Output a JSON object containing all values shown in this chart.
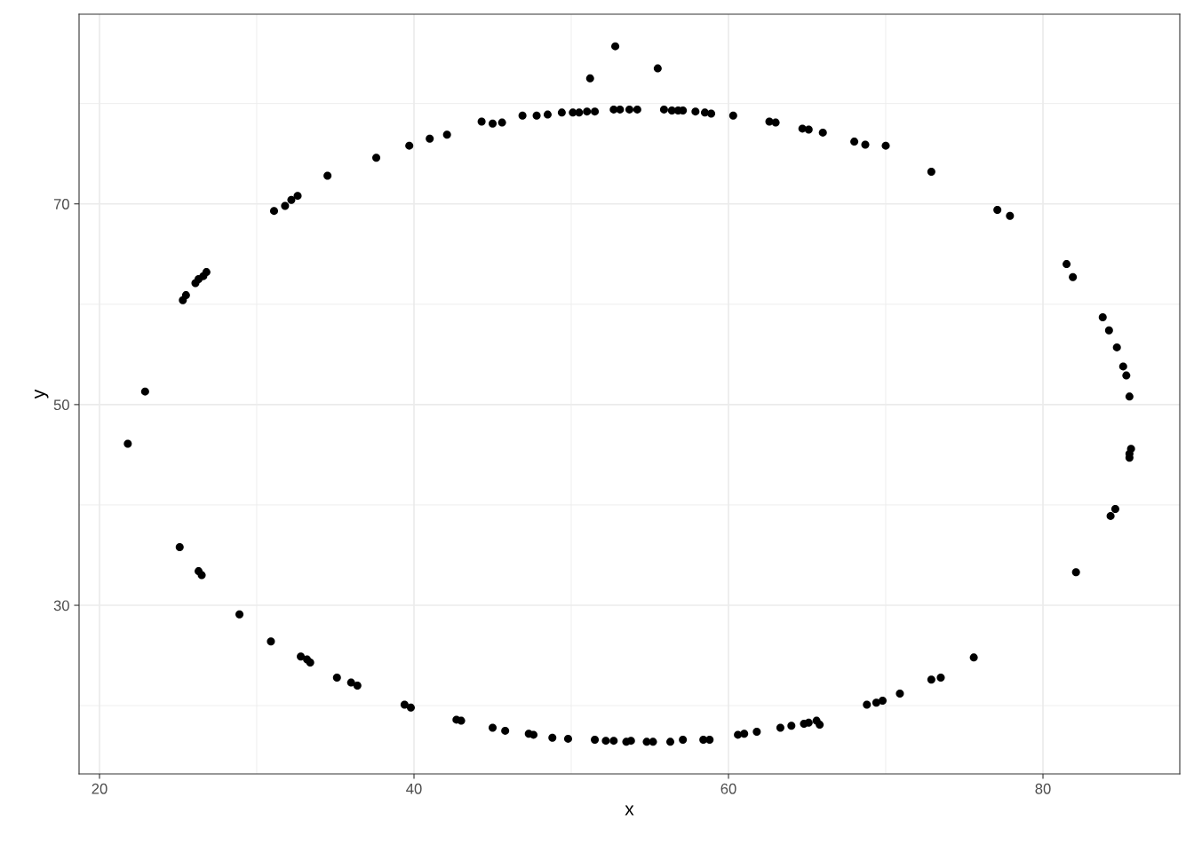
{
  "chart_data": {
    "type": "scatter",
    "xlabel": "x",
    "ylabel": "y",
    "xlim": [
      18.7,
      88.7
    ],
    "ylim": [
      13.2,
      88.9
    ],
    "xticks": [
      20,
      40,
      60,
      80
    ],
    "yticks": [
      30,
      50,
      70
    ],
    "grid": true,
    "marker": "circle",
    "series": [
      {
        "color": "#000000",
        "x": [
          52.8,
          55.5,
          51.2,
          31.1,
          31.8,
          32.2,
          32.6,
          34.5,
          37.6,
          39.7,
          41.0,
          42.1,
          44.3,
          45.0,
          45.6,
          46.9,
          47.8,
          48.5,
          49.4,
          50.1,
          50.5,
          51.0,
          51.5,
          52.7,
          53.1,
          53.7,
          54.2,
          55.9,
          56.4,
          56.8,
          57.1,
          57.9,
          58.5,
          58.9,
          60.3,
          62.6,
          63.0,
          64.7,
          65.1,
          66.0,
          68.0,
          68.7,
          70.0,
          72.9,
          77.1,
          77.9,
          81.5,
          81.9,
          83.8,
          84.2,
          84.7,
          85.1,
          85.3,
          85.5,
          85.6,
          85.5,
          85.5,
          84.6,
          84.3,
          82.1,
          26.8,
          26.6,
          26.3,
          26.1,
          25.5,
          25.3,
          22.9,
          21.8,
          25.1,
          26.3,
          26.5,
          28.9,
          30.9,
          32.8,
          33.2,
          33.4,
          35.1,
          36.0,
          36.4,
          39.4,
          39.8,
          42.7,
          43.0,
          45.0,
          45.8,
          47.3,
          47.6,
          48.8,
          49.8,
          51.5,
          52.2,
          52.7,
          53.5,
          53.8,
          54.8,
          55.2,
          56.3,
          57.1,
          58.4,
          58.8,
          60.6,
          61.0,
          61.8,
          63.3,
          64.0,
          64.8,
          65.1,
          65.6,
          65.8,
          68.8,
          69.4,
          69.8,
          70.9,
          72.9,
          73.5,
          75.6
        ],
        "values": [
          85.7,
          83.5,
          82.5,
          69.3,
          69.8,
          70.4,
          70.8,
          72.8,
          74.6,
          75.8,
          76.5,
          76.9,
          78.2,
          78.0,
          78.1,
          78.8,
          78.8,
          78.9,
          79.1,
          79.1,
          79.1,
          79.2,
          79.2,
          79.4,
          79.4,
          79.4,
          79.4,
          79.4,
          79.3,
          79.3,
          79.3,
          79.2,
          79.1,
          79.0,
          78.8,
          78.2,
          78.1,
          77.5,
          77.4,
          77.1,
          76.2,
          75.9,
          75.8,
          73.2,
          69.4,
          68.8,
          64.0,
          62.7,
          58.7,
          57.4,
          55.7,
          53.8,
          52.9,
          50.8,
          45.6,
          45.1,
          44.7,
          39.6,
          38.9,
          33.3,
          63.2,
          62.8,
          62.5,
          62.1,
          60.9,
          60.4,
          51.3,
          46.1,
          35.8,
          33.4,
          33.0,
          29.1,
          26.4,
          24.9,
          24.6,
          24.3,
          22.8,
          22.3,
          22.0,
          20.1,
          19.8,
          18.6,
          18.5,
          17.8,
          17.5,
          17.2,
          17.1,
          16.8,
          16.7,
          16.6,
          16.5,
          16.5,
          16.4,
          16.5,
          16.4,
          16.4,
          16.4,
          16.6,
          16.6,
          16.6,
          17.1,
          17.2,
          17.4,
          17.8,
          18.0,
          18.2,
          18.3,
          18.5,
          18.1,
          20.1,
          20.3,
          20.5,
          21.2,
          22.6,
          22.8,
          24.8
        ]
      }
    ]
  }
}
